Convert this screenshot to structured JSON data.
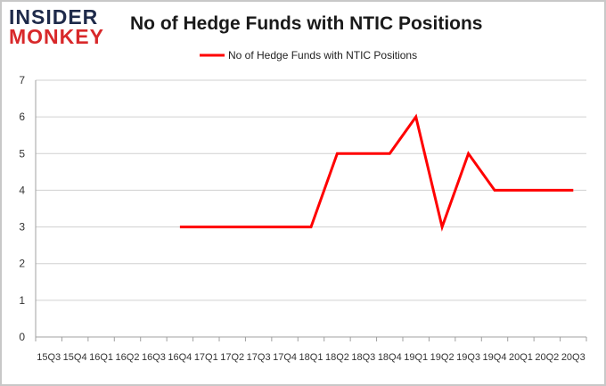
{
  "logo": {
    "line1": "INSIDER",
    "line2": "MONKEY"
  },
  "chart_data": {
    "type": "line",
    "title": "No of Hedge Funds with NTIC Positions",
    "x": [
      "15Q3",
      "15Q4",
      "16Q1",
      "16Q2",
      "16Q3",
      "16Q4",
      "17Q1",
      "17Q2",
      "17Q3",
      "17Q4",
      "18Q1",
      "18Q2",
      "18Q3",
      "18Q4",
      "19Q1",
      "19Q2",
      "19Q3",
      "19Q4",
      "20Q1",
      "20Q2",
      "20Q3"
    ],
    "series": [
      {
        "name": "No of Hedge Funds with NTIC  Positions",
        "values": [
          null,
          null,
          null,
          null,
          null,
          3,
          3,
          3,
          3,
          3,
          3,
          5,
          5,
          5,
          6,
          3,
          5,
          4,
          4,
          4,
          4
        ]
      }
    ],
    "ylim": [
      0,
      7
    ],
    "yticks": [
      0,
      1,
      2,
      3,
      4,
      5,
      6,
      7
    ],
    "grid": true,
    "legend": "top-center",
    "colors": {
      "line": "#ff0000",
      "grid": "#d0d0d0",
      "axis": "#a0a0a0"
    }
  }
}
